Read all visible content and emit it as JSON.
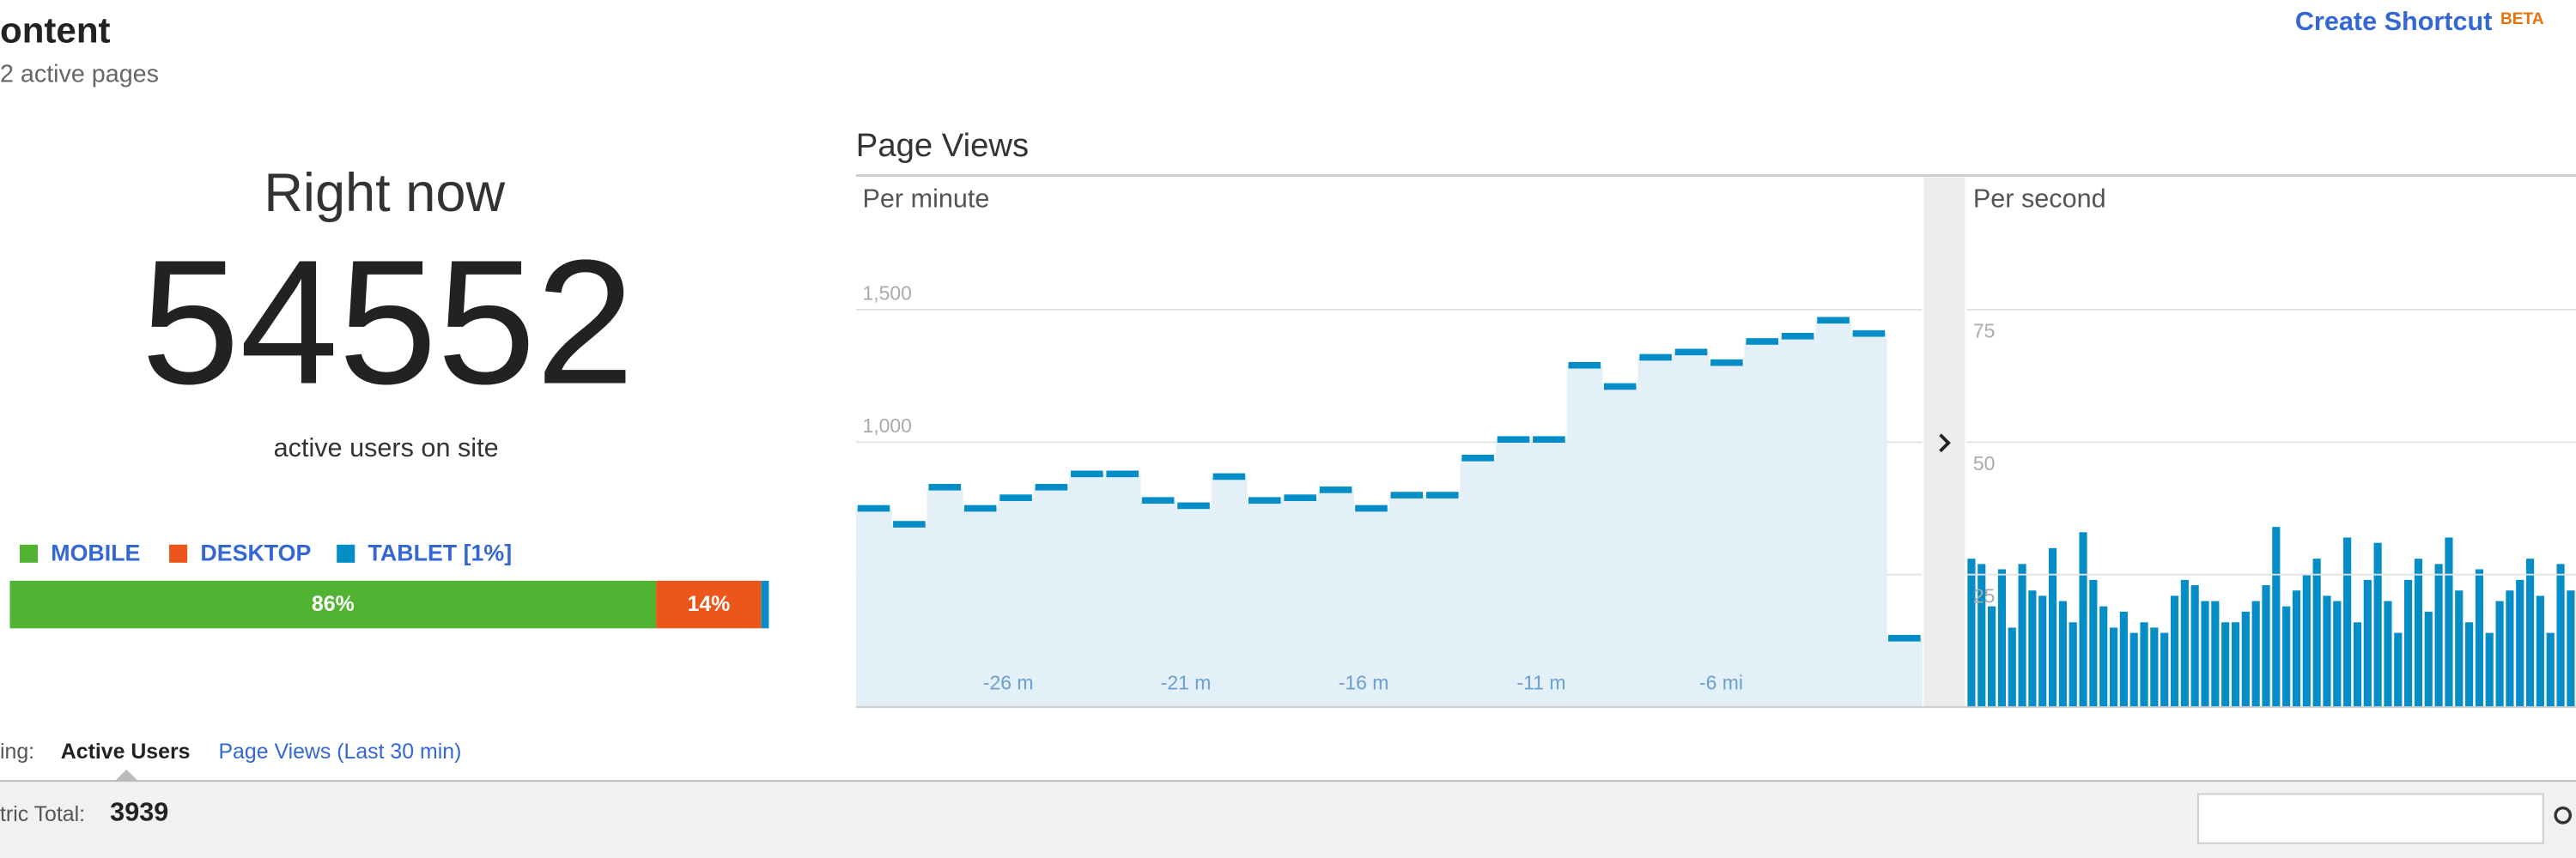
{
  "header": {
    "title": "ontent",
    "subtitle": "2 active pages",
    "shortcut": "Create Shortcut",
    "beta": "BETA"
  },
  "right_now": {
    "label": "Right now",
    "value": 54552,
    "caption": "active users on site"
  },
  "devices": {
    "series": [
      {
        "name": "MOBILE",
        "color": "#50b432",
        "value": 86,
        "value_label": "86%"
      },
      {
        "name": "DESKTOP",
        "color": "#ed561b",
        "value": 14,
        "value_label": "14%"
      },
      {
        "name": "TABLET [1%]",
        "color": "#058dc7",
        "value": 1
      }
    ]
  },
  "page_views_title": "Page Views",
  "tabs": {
    "prefix": "ing:",
    "active": "Active Users",
    "other": "Page Views (Last 30 min)"
  },
  "metric_total": {
    "label": "tric Total:",
    "value": 3939
  },
  "chart_data": [
    {
      "type": "step",
      "subtitle": "Per minute",
      "color": "#058dc7",
      "fill": "#e3f0f8",
      "categories": [
        null,
        null,
        null,
        null,
        "-26 min",
        null,
        null,
        null,
        null,
        "-21 min",
        null,
        null,
        null,
        null,
        "-16 min",
        null,
        null,
        null,
        null,
        "-11 min",
        null,
        null,
        null,
        null,
        "-6 min",
        null,
        null,
        null,
        null,
        null
      ],
      "values": [
        750,
        690,
        830,
        750,
        790,
        830,
        880,
        880,
        780,
        760,
        870,
        780,
        790,
        820,
        750,
        800,
        800,
        940,
        1010,
        1010,
        1290,
        1210,
        1320,
        1340,
        1300,
        1380,
        1400,
        1460,
        1410,
        260
      ],
      "ylim": [
        0,
        2000
      ],
      "yticks": [
        500,
        {
          "value": 1000,
          "label": "1,000"
        },
        {
          "value": 1500,
          "label": "1,500"
        }
      ],
      "grid": true
    },
    {
      "type": "bar",
      "subtitle": "Per second",
      "color": "#058dc7",
      "values": [
        28,
        27,
        19,
        26,
        15,
        27,
        22,
        21,
        30,
        20,
        16,
        33,
        24,
        19,
        15,
        18,
        14,
        16,
        15,
        14,
        21,
        24,
        23,
        20,
        20,
        16,
        16,
        18,
        20,
        23,
        34,
        19,
        22,
        25,
        28,
        21,
        20,
        32,
        16,
        24,
        31,
        20,
        14,
        24,
        28,
        18,
        27,
        32,
        22,
        16,
        26,
        14,
        20,
        22,
        24,
        28,
        21,
        14,
        27,
        22
      ],
      "ylim": [
        0,
        100
      ],
      "yticks": [
        25,
        50,
        75
      ],
      "grid": true
    }
  ]
}
